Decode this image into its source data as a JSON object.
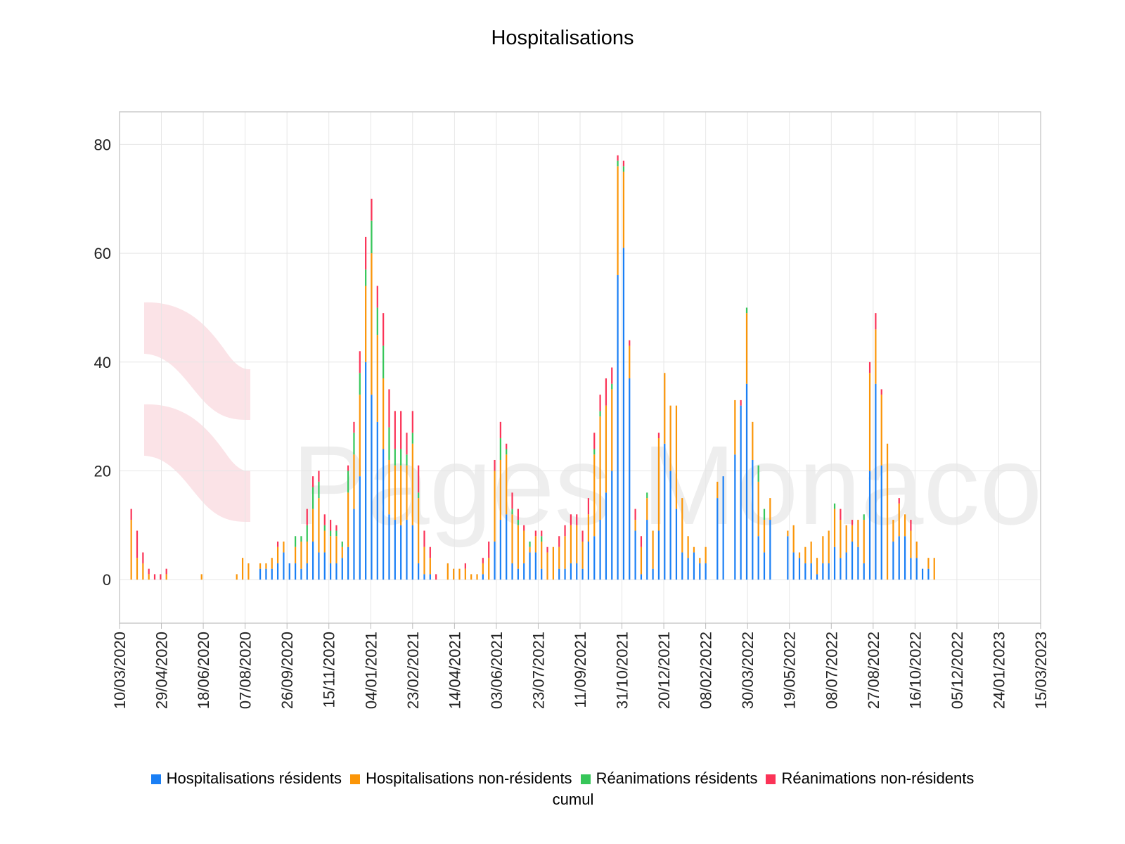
{
  "chart_data": {
    "type": "bar",
    "stacked": true,
    "title": "Hospitalisations",
    "legend_extra": "cumul",
    "grid": true,
    "legend_position": "bottom",
    "watermark": "Pages Monaco",
    "x_axis": {
      "type": "date",
      "range": [
        "2020-03-10",
        "2023-03-15"
      ],
      "ticks": [
        "10/03/2020",
        "29/04/2020",
        "18/06/2020",
        "07/08/2020",
        "26/09/2020",
        "15/11/2020",
        "04/01/2021",
        "23/02/2021",
        "14/04/2021",
        "03/06/2021",
        "23/07/2021",
        "11/09/2021",
        "31/10/2021",
        "20/12/2021",
        "08/02/2022",
        "30/03/2022",
        "19/05/2022",
        "08/07/2022",
        "27/08/2022",
        "16/10/2022",
        "05/12/2022",
        "24/01/2023",
        "15/03/2023"
      ]
    },
    "y_axis": {
      "range": [
        -8,
        86
      ],
      "ticks": [
        0,
        20,
        40,
        60,
        80
      ]
    },
    "series": [
      {
        "name": "Hospitalisations résidents",
        "color": "#1a7ff5"
      },
      {
        "name": "Hospitalisations non-résidents",
        "color": "#fb9507"
      },
      {
        "name": "Réanimations résidents",
        "color": "#36c659"
      },
      {
        "name": "Réanimations non-résidents",
        "color": "#fb3357"
      }
    ],
    "points": [
      {
        "date": "2020-03-24",
        "v": [
          0,
          11,
          0,
          2
        ]
      },
      {
        "date": "2020-03-31",
        "v": [
          0,
          4,
          0,
          5
        ]
      },
      {
        "date": "2020-04-07",
        "v": [
          0,
          3,
          0,
          2
        ]
      },
      {
        "date": "2020-04-14",
        "v": [
          0,
          1,
          0,
          1
        ]
      },
      {
        "date": "2020-04-21",
        "v": [
          0,
          0,
          0,
          1
        ]
      },
      {
        "date": "2020-04-28",
        "v": [
          0,
          0,
          0,
          1
        ]
      },
      {
        "date": "2020-05-05",
        "v": [
          0,
          1,
          0,
          1
        ]
      },
      {
        "date": "2020-06-16",
        "v": [
          0,
          1,
          0,
          0
        ]
      },
      {
        "date": "2020-07-28",
        "v": [
          0,
          1,
          0,
          0
        ]
      },
      {
        "date": "2020-08-04",
        "v": [
          0,
          4,
          0,
          0
        ]
      },
      {
        "date": "2020-08-11",
        "v": [
          0,
          3,
          0,
          0
        ]
      },
      {
        "date": "2020-08-25",
        "v": [
          2,
          1,
          0,
          0
        ]
      },
      {
        "date": "2020-09-01",
        "v": [
          2,
          1,
          0,
          0
        ]
      },
      {
        "date": "2020-09-08",
        "v": [
          2,
          2,
          0,
          0
        ]
      },
      {
        "date": "2020-09-15",
        "v": [
          3,
          3,
          0,
          1
        ]
      },
      {
        "date": "2020-09-22",
        "v": [
          5,
          2,
          0,
          0
        ]
      },
      {
        "date": "2020-09-29",
        "v": [
          3,
          0,
          0,
          0
        ]
      },
      {
        "date": "2020-10-06",
        "v": [
          3,
          3,
          2,
          0
        ]
      },
      {
        "date": "2020-10-13",
        "v": [
          2,
          5,
          1,
          0
        ]
      },
      {
        "date": "2020-10-20",
        "v": [
          3,
          4,
          3,
          3
        ]
      },
      {
        "date": "2020-10-27",
        "v": [
          7,
          6,
          4,
          2
        ]
      },
      {
        "date": "2020-11-03",
        "v": [
          5,
          10,
          3,
          2
        ]
      },
      {
        "date": "2020-11-10",
        "v": [
          5,
          4,
          1,
          2
        ]
      },
      {
        "date": "2020-11-17",
        "v": [
          3,
          5,
          1,
          2
        ]
      },
      {
        "date": "2020-11-24",
        "v": [
          3,
          5,
          1,
          1
        ]
      },
      {
        "date": "2020-12-01",
        "v": [
          4,
          2,
          1,
          0
        ]
      },
      {
        "date": "2020-12-08",
        "v": [
          6,
          10,
          4,
          1
        ]
      },
      {
        "date": "2020-12-15",
        "v": [
          13,
          10,
          4,
          2
        ]
      },
      {
        "date": "2020-12-22",
        "v": [
          19,
          15,
          4,
          4
        ]
      },
      {
        "date": "2020-12-29",
        "v": [
          40,
          14,
          3,
          6
        ]
      },
      {
        "date": "2021-01-05",
        "v": [
          34,
          26,
          6,
          4
        ]
      },
      {
        "date": "2021-01-12",
        "v": [
          29,
          16,
          5,
          4
        ]
      },
      {
        "date": "2021-01-19",
        "v": [
          24,
          13,
          6,
          6
        ]
      },
      {
        "date": "2021-01-26",
        "v": [
          12,
          10,
          6,
          7
        ]
      },
      {
        "date": "2021-02-02",
        "v": [
          11,
          10,
          3,
          7
        ]
      },
      {
        "date": "2021-02-09",
        "v": [
          10,
          11,
          3,
          7
        ]
      },
      {
        "date": "2021-02-16",
        "v": [
          11,
          10,
          2,
          4
        ]
      },
      {
        "date": "2021-02-23",
        "v": [
          10,
          15,
          2,
          4
        ]
      },
      {
        "date": "2021-03-02",
        "v": [
          3,
          12,
          1,
          5
        ]
      },
      {
        "date": "2021-03-09",
        "v": [
          1,
          5,
          0,
          3
        ]
      },
      {
        "date": "2021-03-16",
        "v": [
          1,
          3,
          0,
          2
        ]
      },
      {
        "date": "2021-03-23",
        "v": [
          0,
          0,
          0,
          1
        ]
      },
      {
        "date": "2021-04-06",
        "v": [
          0,
          3,
          0,
          0
        ]
      },
      {
        "date": "2021-04-13",
        "v": [
          0,
          2,
          0,
          0
        ]
      },
      {
        "date": "2021-04-20",
        "v": [
          0,
          2,
          0,
          0
        ]
      },
      {
        "date": "2021-04-27",
        "v": [
          0,
          2,
          0,
          1
        ]
      },
      {
        "date": "2021-05-04",
        "v": [
          0,
          1,
          0,
          0
        ]
      },
      {
        "date": "2021-05-11",
        "v": [
          0,
          1,
          0,
          0
        ]
      },
      {
        "date": "2021-05-18",
        "v": [
          1,
          2,
          0,
          1
        ]
      },
      {
        "date": "2021-05-25",
        "v": [
          0,
          4,
          0,
          3
        ]
      },
      {
        "date": "2021-06-01",
        "v": [
          7,
          13,
          0,
          2
        ]
      },
      {
        "date": "2021-06-08",
        "v": [
          11,
          11,
          4,
          3
        ]
      },
      {
        "date": "2021-06-15",
        "v": [
          12,
          11,
          1,
          1
        ]
      },
      {
        "date": "2021-06-22",
        "v": [
          3,
          9,
          1,
          3
        ]
      },
      {
        "date": "2021-06-29",
        "v": [
          2,
          8,
          1,
          2
        ]
      },
      {
        "date": "2021-07-06",
        "v": [
          3,
          6,
          0,
          1
        ]
      },
      {
        "date": "2021-07-13",
        "v": [
          5,
          1,
          1,
          0
        ]
      },
      {
        "date": "2021-07-20",
        "v": [
          5,
          3,
          0,
          1
        ]
      },
      {
        "date": "2021-07-27",
        "v": [
          2,
          5,
          1,
          1
        ]
      },
      {
        "date": "2021-08-03",
        "v": [
          0,
          5,
          0,
          1
        ]
      },
      {
        "date": "2021-08-10",
        "v": [
          0,
          6,
          0,
          0
        ]
      },
      {
        "date": "2021-08-17",
        "v": [
          2,
          4,
          0,
          2
        ]
      },
      {
        "date": "2021-08-24",
        "v": [
          2,
          6,
          0,
          2
        ]
      },
      {
        "date": "2021-08-31",
        "v": [
          3,
          7,
          0,
          2
        ]
      },
      {
        "date": "2021-09-07",
        "v": [
          3,
          7,
          0,
          2
        ]
      },
      {
        "date": "2021-09-14",
        "v": [
          2,
          5,
          0,
          2
        ]
      },
      {
        "date": "2021-09-21",
        "v": [
          7,
          5,
          0,
          3
        ]
      },
      {
        "date": "2021-09-28",
        "v": [
          8,
          15,
          1,
          3
        ]
      },
      {
        "date": "2021-10-05",
        "v": [
          11,
          19,
          1,
          3
        ]
      },
      {
        "date": "2021-10-12",
        "v": [
          16,
          16,
          0,
          5
        ]
      },
      {
        "date": "2021-10-19",
        "v": [
          20,
          15,
          1,
          3
        ]
      },
      {
        "date": "2021-10-26",
        "v": [
          56,
          20,
          1,
          1
        ]
      },
      {
        "date": "2021-11-02",
        "v": [
          61,
          14,
          1,
          1
        ]
      },
      {
        "date": "2021-11-09",
        "v": [
          37,
          6,
          0,
          1
        ]
      },
      {
        "date": "2021-11-16",
        "v": [
          9,
          2,
          0,
          2
        ]
      },
      {
        "date": "2021-11-23",
        "v": [
          1,
          5,
          0,
          2
        ]
      },
      {
        "date": "2021-11-30",
        "v": [
          11,
          4,
          1,
          0
        ]
      },
      {
        "date": "2021-12-07",
        "v": [
          2,
          7,
          0,
          0
        ]
      },
      {
        "date": "2021-12-14",
        "v": [
          9,
          17,
          0,
          1
        ]
      },
      {
        "date": "2021-12-21",
        "v": [
          25,
          13,
          0,
          0
        ]
      },
      {
        "date": "2021-12-28",
        "v": [
          20,
          12,
          0,
          0
        ]
      },
      {
        "date": "2022-01-04",
        "v": [
          13,
          19,
          0,
          0
        ]
      },
      {
        "date": "2022-01-11",
        "v": [
          5,
          10,
          0,
          0
        ]
      },
      {
        "date": "2022-01-18",
        "v": [
          4,
          4,
          0,
          0
        ]
      },
      {
        "date": "2022-01-25",
        "v": [
          5,
          1,
          0,
          0
        ]
      },
      {
        "date": "2022-02-01",
        "v": [
          3,
          1,
          0,
          0
        ]
      },
      {
        "date": "2022-02-08",
        "v": [
          3,
          3,
          0,
          0
        ]
      },
      {
        "date": "2022-02-22",
        "v": [
          15,
          3,
          0,
          0
        ]
      },
      {
        "date": "2022-03-01",
        "v": [
          19,
          0,
          0,
          0
        ]
      },
      {
        "date": "2022-03-15",
        "v": [
          23,
          10,
          0,
          0
        ]
      },
      {
        "date": "2022-03-22",
        "v": [
          32,
          0,
          0,
          1
        ]
      },
      {
        "date": "2022-03-29",
        "v": [
          36,
          13,
          1,
          0
        ]
      },
      {
        "date": "2022-04-05",
        "v": [
          22,
          7,
          0,
          0
        ]
      },
      {
        "date": "2022-04-12",
        "v": [
          8,
          10,
          3,
          0
        ]
      },
      {
        "date": "2022-04-19",
        "v": [
          5,
          6,
          2,
          0
        ]
      },
      {
        "date": "2022-04-26",
        "v": [
          11,
          4,
          0,
          0
        ]
      },
      {
        "date": "2022-05-17",
        "v": [
          8,
          1,
          0,
          0
        ]
      },
      {
        "date": "2022-05-24",
        "v": [
          5,
          5,
          0,
          0
        ]
      },
      {
        "date": "2022-05-31",
        "v": [
          4,
          1,
          0,
          0
        ]
      },
      {
        "date": "2022-06-07",
        "v": [
          3,
          3,
          0,
          0
        ]
      },
      {
        "date": "2022-06-14",
        "v": [
          3,
          4,
          0,
          0
        ]
      },
      {
        "date": "2022-06-21",
        "v": [
          1,
          3,
          0,
          0
        ]
      },
      {
        "date": "2022-06-28",
        "v": [
          3,
          5,
          0,
          0
        ]
      },
      {
        "date": "2022-07-05",
        "v": [
          3,
          6,
          0,
          0
        ]
      },
      {
        "date": "2022-07-12",
        "v": [
          6,
          7,
          1,
          0
        ]
      },
      {
        "date": "2022-07-19",
        "v": [
          4,
          7,
          0,
          2
        ]
      },
      {
        "date": "2022-07-26",
        "v": [
          5,
          5,
          0,
          0
        ]
      },
      {
        "date": "2022-08-02",
        "v": [
          7,
          3,
          0,
          1
        ]
      },
      {
        "date": "2022-08-09",
        "v": [
          6,
          5,
          0,
          0
        ]
      },
      {
        "date": "2022-08-16",
        "v": [
          3,
          8,
          1,
          0
        ]
      },
      {
        "date": "2022-08-23",
        "v": [
          20,
          18,
          0,
          2
        ]
      },
      {
        "date": "2022-08-30",
        "v": [
          36,
          10,
          0,
          3
        ]
      },
      {
        "date": "2022-09-06",
        "v": [
          21,
          13,
          0,
          1
        ]
      },
      {
        "date": "2022-09-13",
        "v": [
          0,
          25,
          0,
          0
        ]
      },
      {
        "date": "2022-09-20",
        "v": [
          7,
          4,
          0,
          0
        ]
      },
      {
        "date": "2022-09-27",
        "v": [
          8,
          6,
          0,
          1
        ]
      },
      {
        "date": "2022-10-04",
        "v": [
          8,
          4,
          0,
          0
        ]
      },
      {
        "date": "2022-10-11",
        "v": [
          4,
          5,
          0,
          2
        ]
      },
      {
        "date": "2022-10-18",
        "v": [
          4,
          3,
          0,
          0
        ]
      },
      {
        "date": "2022-10-25",
        "v": [
          2,
          0,
          0,
          0
        ]
      },
      {
        "date": "2022-11-01",
        "v": [
          2,
          2,
          0,
          0
        ]
      },
      {
        "date": "2022-11-08",
        "v": [
          0,
          4,
          0,
          0
        ]
      }
    ]
  }
}
